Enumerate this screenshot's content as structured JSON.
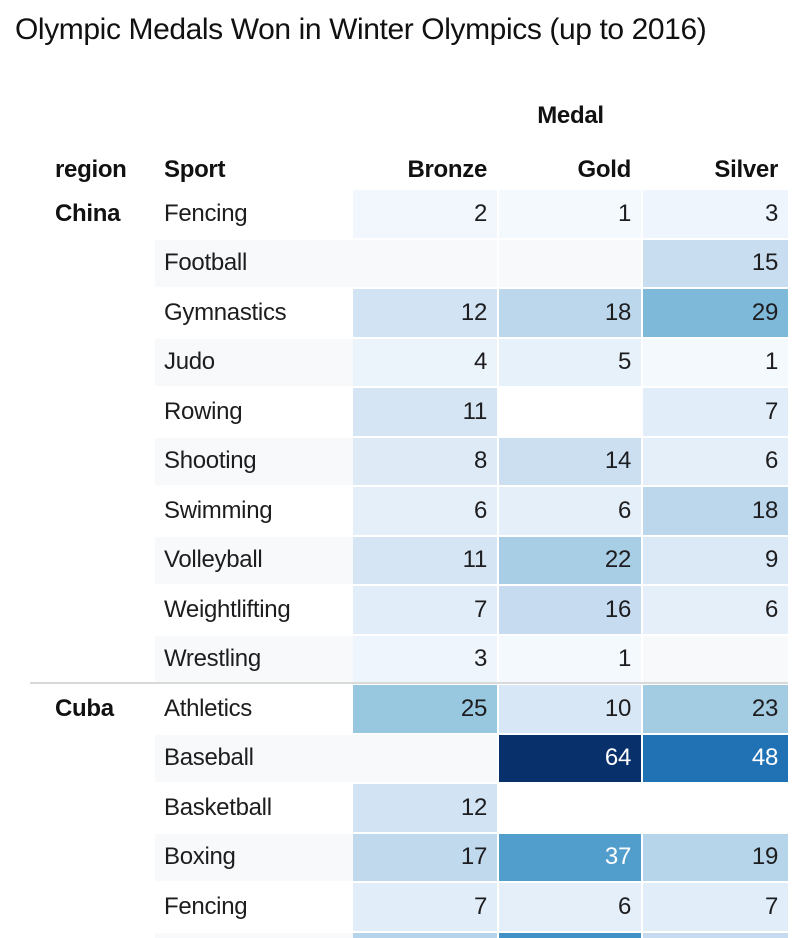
{
  "chart_data": {
    "type": "heatmap",
    "title": "Olympic Medals Won in Winter Olympics (up to 2016)",
    "col_group_label": "Medal",
    "row_index_labels": [
      "region",
      "Sport"
    ],
    "columns": [
      "Bronze",
      "Gold",
      "Silver"
    ],
    "rows": [
      {
        "region": "China",
        "sport": "Fencing",
        "values": [
          2,
          1,
          3
        ]
      },
      {
        "region": null,
        "sport": "Football",
        "values": [
          null,
          null,
          15
        ]
      },
      {
        "region": null,
        "sport": "Gymnastics",
        "values": [
          12,
          18,
          29
        ]
      },
      {
        "region": null,
        "sport": "Judo",
        "values": [
          4,
          5,
          1
        ]
      },
      {
        "region": null,
        "sport": "Rowing",
        "values": [
          11,
          null,
          7
        ]
      },
      {
        "region": null,
        "sport": "Shooting",
        "values": [
          8,
          14,
          6
        ]
      },
      {
        "region": null,
        "sport": "Swimming",
        "values": [
          6,
          6,
          18
        ]
      },
      {
        "region": null,
        "sport": "Volleyball",
        "values": [
          11,
          22,
          9
        ]
      },
      {
        "region": null,
        "sport": "Weightlifting",
        "values": [
          7,
          16,
          6
        ]
      },
      {
        "region": null,
        "sport": "Wrestling",
        "values": [
          3,
          1,
          null
        ]
      },
      {
        "region": "Cuba",
        "sport": "Athletics",
        "values": [
          25,
          10,
          23
        ]
      },
      {
        "region": null,
        "sport": "Baseball",
        "values": [
          null,
          64,
          48
        ]
      },
      {
        "region": null,
        "sport": "Basketball",
        "values": [
          12,
          null,
          null
        ]
      },
      {
        "region": null,
        "sport": "Boxing",
        "values": [
          17,
          37,
          19
        ]
      },
      {
        "region": null,
        "sport": "Fencing",
        "values": [
          7,
          6,
          7
        ]
      }
    ],
    "partial_bottom_row": {
      "colors": [
        "#b5d3ea",
        "#4191c6",
        "#c6dbef"
      ]
    },
    "colormap": {
      "name": "Blues",
      "vmin": 0,
      "vmax": 64,
      "anchors": [
        [
          0,
          "#f7fbff"
        ],
        [
          0.125,
          "#deebf7"
        ],
        [
          0.25,
          "#c6dbef"
        ],
        [
          0.375,
          "#9ecae1"
        ],
        [
          0.5,
          "#6baed6"
        ],
        [
          0.625,
          "#4292c6"
        ],
        [
          0.75,
          "#2171b5"
        ],
        [
          0.875,
          "#08519c"
        ],
        [
          1,
          "#08306b"
        ]
      ],
      "white_text_threshold": 0.52
    },
    "layout": {
      "group_divider_between": [
        "China",
        "Cuba"
      ]
    },
    "styles": {
      "stripe": "#f8f9fa",
      "row_background": "#ffffff",
      "divider": "#d8dada",
      "text_dark": "#1d1d1f",
      "text_light": "#ffffff"
    }
  }
}
